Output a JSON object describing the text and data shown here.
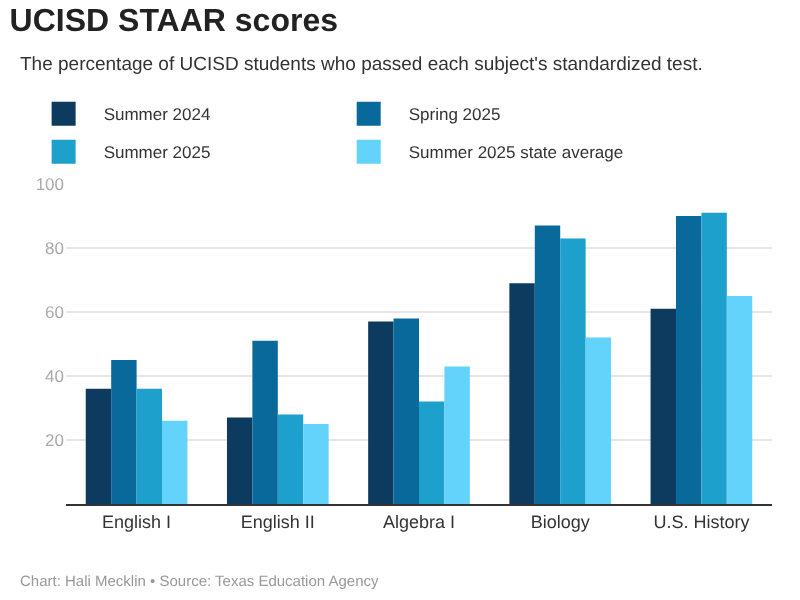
{
  "chart_data": {
    "type": "bar",
    "title": "UCISD STAAR scores",
    "subtitle": "The percentage of UCISD students who passed each subject's standardized test.",
    "categories": [
      "English I",
      "English II",
      "Algebra I",
      "Biology",
      "U.S. History"
    ],
    "series": [
      {
        "name": "Summer 2024",
        "color": "#0d3b5f",
        "values": [
          36,
          27,
          57,
          69,
          61
        ]
      },
      {
        "name": "Spring 2025",
        "color": "#08699a",
        "values": [
          45,
          51,
          58,
          87,
          90
        ]
      },
      {
        "name": "Summer 2025",
        "color": "#1ea0cc",
        "values": [
          36,
          28,
          32,
          83,
          91
        ]
      },
      {
        "name": "Summer 2025 state average",
        "color": "#63d3fb",
        "values": [
          26,
          25,
          43,
          52,
          65
        ]
      }
    ],
    "ylim": [
      0,
      100
    ],
    "yticks": [
      {
        "value": 0,
        "label": null
      },
      20,
      40,
      60,
      80,
      100
    ],
    "grid": "y",
    "legend": "top left",
    "annotations": [
      "Chart: Hali Mecklin • Source: Texas Education Agency"
    ]
  }
}
